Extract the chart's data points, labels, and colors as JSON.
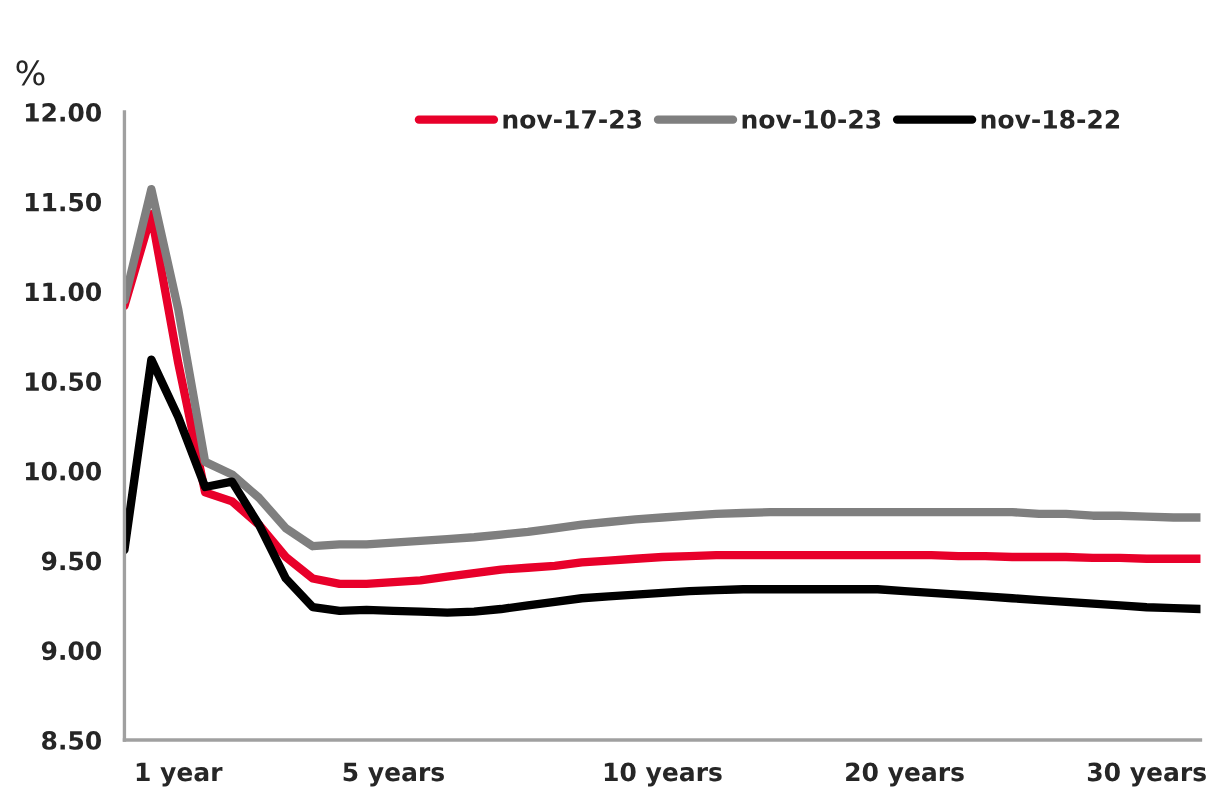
{
  "chart_data": {
    "type": "line",
    "ylabel": "%",
    "categories": [
      null,
      null,
      "1 year",
      null,
      null,
      null,
      null,
      null,
      null,
      null,
      "5 years",
      null,
      null,
      null,
      null,
      null,
      null,
      null,
      null,
      null,
      "10 years",
      null,
      null,
      null,
      null,
      null,
      null,
      null,
      null,
      "20 years",
      null,
      null,
      null,
      null,
      null,
      null,
      null,
      null,
      "30 years",
      null,
      null
    ],
    "series": [
      {
        "name": "nov-17-23",
        "color": "#e8002a",
        "values": [
          10.92,
          11.43,
          10.6,
          9.88,
          9.83,
          9.7,
          9.52,
          9.4,
          9.37,
          9.37,
          9.38,
          9.39,
          9.41,
          9.43,
          9.45,
          9.46,
          9.47,
          9.49,
          9.5,
          9.51,
          9.52,
          9.525,
          9.53,
          9.53,
          9.53,
          9.53,
          9.53,
          9.53,
          9.53,
          9.53,
          9.53,
          9.525,
          9.525,
          9.52,
          9.52,
          9.52,
          9.515,
          9.515,
          9.51,
          9.51,
          9.51
        ]
      },
      {
        "name": "nov-10-23",
        "color": "#7f7f7f",
        "values": [
          10.95,
          11.57,
          10.9,
          10.05,
          9.98,
          9.85,
          9.68,
          9.58,
          9.59,
          9.59,
          9.6,
          9.61,
          9.62,
          9.63,
          9.645,
          9.66,
          9.68,
          9.7,
          9.715,
          9.73,
          9.74,
          9.75,
          9.76,
          9.765,
          9.77,
          9.77,
          9.77,
          9.77,
          9.77,
          9.77,
          9.77,
          9.77,
          9.77,
          9.77,
          9.76,
          9.76,
          9.75,
          9.75,
          9.745,
          9.74,
          9.74
        ]
      },
      {
        "name": "nov-18-22",
        "color": "#000000",
        "values": [
          9.56,
          10.62,
          10.3,
          9.91,
          9.94,
          9.7,
          9.4,
          9.24,
          9.22,
          9.225,
          9.22,
          9.215,
          9.21,
          9.215,
          9.23,
          9.25,
          9.27,
          9.29,
          9.3,
          9.31,
          9.32,
          9.33,
          9.335,
          9.34,
          9.34,
          9.34,
          9.34,
          9.34,
          9.34,
          9.33,
          9.32,
          9.31,
          9.3,
          9.29,
          9.28,
          9.27,
          9.26,
          9.25,
          9.24,
          9.235,
          9.23
        ]
      }
    ],
    "ylim": [
      8.5,
      12.0
    ],
    "yticks": [
      {
        "value": 8.5,
        "label": "8.50"
      },
      {
        "value": 9.0,
        "label": "9.00"
      },
      {
        "value": 9.5,
        "label": "9.50"
      },
      {
        "value": 10.0,
        "label": "10.00"
      },
      {
        "value": 10.5,
        "label": "10.50"
      },
      {
        "value": 11.0,
        "label": "11.00"
      },
      {
        "value": 11.5,
        "label": "11.50"
      },
      {
        "value": 12.0,
        "label": "12.00"
      }
    ],
    "grid": false,
    "legend": "top",
    "marker": "none",
    "line_style": "solid"
  }
}
